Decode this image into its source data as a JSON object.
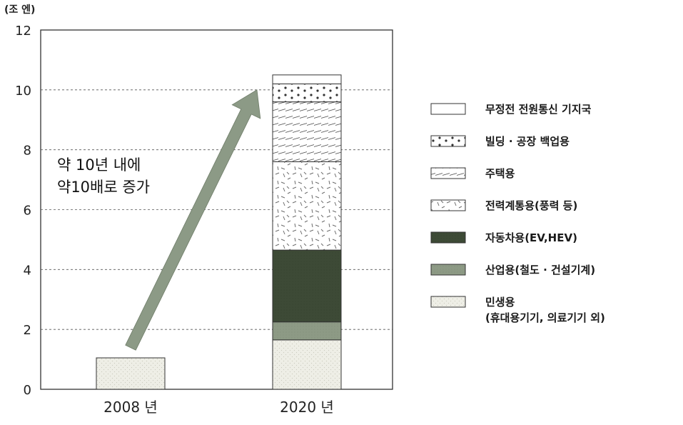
{
  "chart_data": {
    "type": "bar",
    "stacked": true,
    "unit_label": "(조 엔)",
    "categories": [
      "2008 년",
      "2020 년"
    ],
    "yticks": [
      0,
      2,
      4,
      6,
      8,
      10,
      12
    ],
    "ylim": [
      0,
      12
    ],
    "grid": "dashed horizontal",
    "legend_position": "right",
    "series": [
      {
        "name": "민생용\n(휴대용기기, 의료기기 외)",
        "values": [
          1.05,
          1.65
        ],
        "color": "#eeeee6",
        "pattern": "light"
      },
      {
        "name": "산업용(철도 · 건설기계)",
        "values": [
          0,
          0.6
        ],
        "color": "#8d9a85",
        "pattern": "solid"
      },
      {
        "name": "자동차용(EV,HEV)",
        "values": [
          0,
          2.4
        ],
        "color": "#3d4a36",
        "pattern": "solid"
      },
      {
        "name": "전력계통용(풍력 등)",
        "values": [
          0,
          2.95
        ],
        "color": "#ffffff",
        "pattern": "dashes"
      },
      {
        "name": "주택용",
        "values": [
          0,
          2.0
        ],
        "color": "#ffffff",
        "pattern": "hatch"
      },
      {
        "name": "빌딩 · 공장 백업용",
        "values": [
          0,
          0.6
        ],
        "color": "#ffffff",
        "pattern": "dots"
      },
      {
        "name": "무정전 전원통신 기지국",
        "values": [
          0,
          0.3
        ],
        "color": "#ffffff",
        "pattern": "none"
      }
    ],
    "legend_order": [
      6,
      5,
      4,
      3,
      2,
      1,
      0
    ],
    "annotation": {
      "lines": [
        "약 10년 내에",
        "약10배로 증가"
      ],
      "arrow_from": {
        "category": "2008 년",
        "value": 1.2
      },
      "arrow_to": {
        "category": "2020 년",
        "value": 10.0
      },
      "arrow_color": "#8c9a86"
    }
  }
}
